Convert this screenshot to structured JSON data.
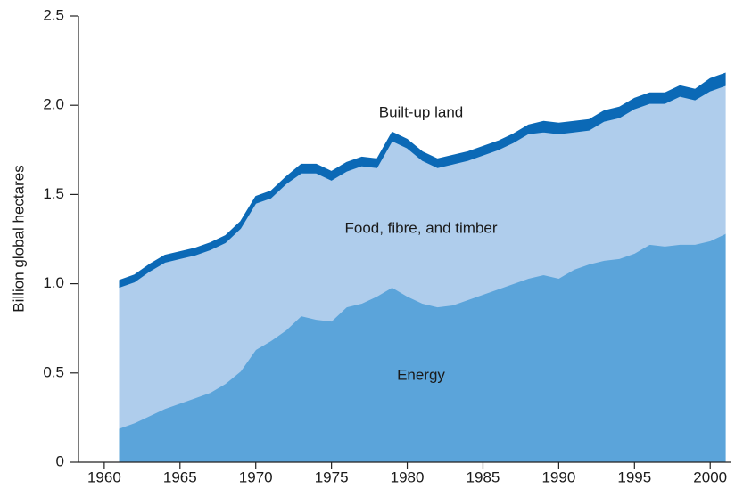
{
  "chart_data": {
    "type": "stacked_area",
    "ylabel": "Billion global hectares",
    "x": [
      1961,
      1962,
      1963,
      1964,
      1965,
      1966,
      1967,
      1968,
      1969,
      1970,
      1971,
      1972,
      1973,
      1974,
      1975,
      1976,
      1977,
      1978,
      1979,
      1980,
      1981,
      1982,
      1983,
      1984,
      1985,
      1986,
      1987,
      1988,
      1989,
      1990,
      1991,
      1992,
      1993,
      1994,
      1995,
      1996,
      1997,
      1998,
      1999,
      2000,
      2001
    ],
    "series": [
      {
        "name": "Energy",
        "color": "#5ba4da",
        "values": [
          0.19,
          0.22,
          0.26,
          0.3,
          0.33,
          0.36,
          0.39,
          0.44,
          0.51,
          0.63,
          0.68,
          0.74,
          0.82,
          0.8,
          0.79,
          0.87,
          0.89,
          0.93,
          0.98,
          0.93,
          0.89,
          0.87,
          0.88,
          0.91,
          0.94,
          0.97,
          1.0,
          1.03,
          1.05,
          1.03,
          1.08,
          1.11,
          1.13,
          1.14,
          1.17,
          1.22,
          1.21,
          1.22,
          1.22,
          1.24,
          1.28
        ]
      },
      {
        "name": "Food, fibre, and timber",
        "color": "#afcdec",
        "values": [
          0.79,
          0.79,
          0.81,
          0.82,
          0.81,
          0.8,
          0.8,
          0.79,
          0.8,
          0.82,
          0.8,
          0.82,
          0.8,
          0.82,
          0.79,
          0.76,
          0.77,
          0.72,
          0.82,
          0.83,
          0.8,
          0.78,
          0.79,
          0.78,
          0.78,
          0.78,
          0.79,
          0.81,
          0.8,
          0.81,
          0.77,
          0.75,
          0.78,
          0.79,
          0.81,
          0.79,
          0.8,
          0.83,
          0.81,
          0.84,
          0.83
        ]
      },
      {
        "name": "Built-up land",
        "color": "#0b69b6",
        "values": [
          0.04,
          0.04,
          0.04,
          0.04,
          0.04,
          0.04,
          0.04,
          0.04,
          0.04,
          0.04,
          0.04,
          0.04,
          0.05,
          0.05,
          0.05,
          0.05,
          0.05,
          0.05,
          0.05,
          0.05,
          0.05,
          0.05,
          0.05,
          0.05,
          0.05,
          0.05,
          0.05,
          0.05,
          0.06,
          0.06,
          0.06,
          0.06,
          0.06,
          0.06,
          0.06,
          0.06,
          0.06,
          0.06,
          0.06,
          0.07,
          0.07
        ]
      }
    ],
    "xlim": [
      1958.3,
      2001.4
    ],
    "ylim": [
      0,
      2.5
    ],
    "xticks": [
      1960,
      1965,
      1970,
      1975,
      1980,
      1985,
      1990,
      1995,
      2000
    ],
    "yticks": [
      0,
      {
        "value": 0.5,
        "label": "0.5"
      },
      {
        "value": 1.0,
        "label": "1.0"
      },
      {
        "value": 1.5,
        "label": "1.5"
      },
      {
        "value": 2.0,
        "label": "2.0"
      },
      {
        "value": 2.5,
        "label": "2.5"
      }
    ]
  }
}
